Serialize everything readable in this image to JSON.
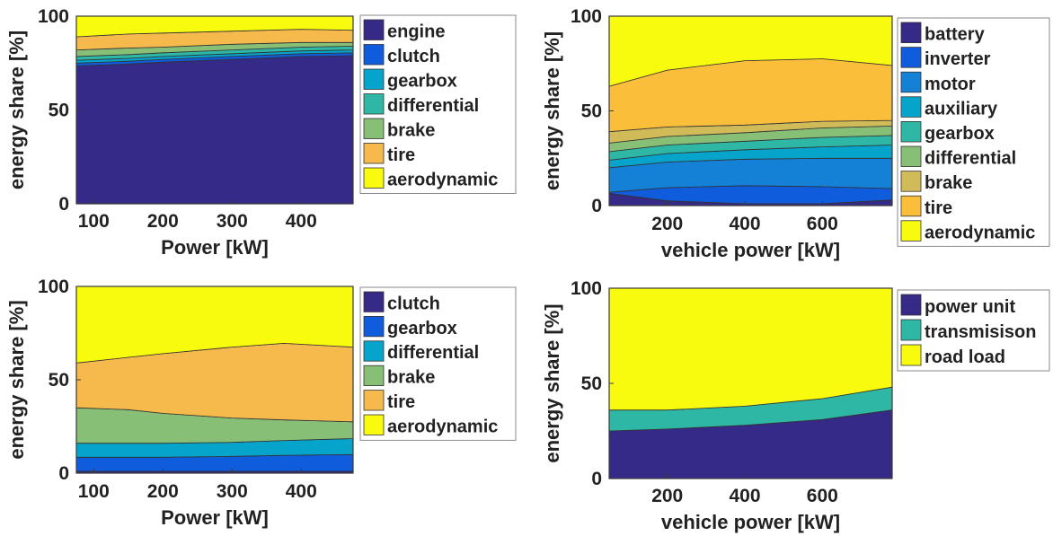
{
  "colors": {
    "dark_blue": "#352a87",
    "blue": "#0f5cdd",
    "mid_blue": "#1481d6",
    "cyan": "#06a4ca",
    "teal": "#2eb7a4",
    "green": "#87bf77",
    "gold": "#d1bb59",
    "orange": "#f5b94c",
    "tire_orange": "#fbbe3a",
    "yellow": "#f9fb0e"
  },
  "chart_data": [
    {
      "type": "area",
      "stacked": true,
      "x": [
        80,
        150,
        200,
        300,
        400,
        475
      ],
      "xlabel": "Power [kW]",
      "ylabel": "energy share [%]",
      "xlim": [
        75,
        475
      ],
      "ylim": [
        0,
        100
      ],
      "xticks": [
        100,
        200,
        300,
        400
      ],
      "yticks": [
        0,
        50,
        100
      ],
      "legend": "right",
      "series": [
        {
          "name": "engine",
          "color": "#352a87",
          "values": [
            73.5,
            74.5,
            75.5,
            77,
            78.5,
            79
          ]
        },
        {
          "name": "clutch",
          "color": "#0f5cdd",
          "values": [
            1.5,
            1.5,
            1.5,
            1.5,
            1.5,
            1.5
          ]
        },
        {
          "name": "gearbox",
          "color": "#06a4ca",
          "values": [
            1.5,
            1.5,
            1.5,
            1.5,
            1.5,
            1.5
          ]
        },
        {
          "name": "differential",
          "color": "#2eb7a4",
          "values": [
            2,
            2,
            2,
            2,
            2,
            2
          ]
        },
        {
          "name": "brake",
          "color": "#87bf77",
          "values": [
            3.5,
            3.5,
            3,
            3,
            2.5,
            2
          ]
        },
        {
          "name": "tire",
          "color": "#f5b94c",
          "values": [
            7,
            7.5,
            7.5,
            7,
            7,
            6.5
          ]
        },
        {
          "name": "aerodynamic",
          "color": "#f9fb0e",
          "values": [
            11,
            9.5,
            9,
            8,
            7,
            7.5
          ]
        }
      ]
    },
    {
      "type": "area",
      "stacked": true,
      "x": [
        50,
        200,
        400,
        600,
        780
      ],
      "xlabel": "vehicle power [kW]",
      "ylabel": "energy share [%]",
      "xlim": [
        50,
        780
      ],
      "ylim": [
        0,
        100
      ],
      "xticks": [
        200,
        400,
        600
      ],
      "yticks": [
        0,
        50,
        100
      ],
      "legend": "right",
      "series": [
        {
          "name": "battery",
          "color": "#352a87",
          "values": [
            6.5,
            2.5,
            1,
            1,
            3
          ]
        },
        {
          "name": "inverter",
          "color": "#0f5cdd",
          "values": [
            0.5,
            7,
            9.5,
            9,
            6
          ]
        },
        {
          "name": "motor",
          "color": "#1481d6",
          "values": [
            13,
            13.5,
            14,
            15,
            16
          ]
        },
        {
          "name": "auxiliary",
          "color": "#06a4ca",
          "values": [
            4,
            4.5,
            5,
            6,
            7
          ]
        },
        {
          "name": "gearbox",
          "color": "#2eb7a4",
          "values": [
            4.5,
            4.5,
            4.5,
            5,
            5
          ]
        },
        {
          "name": "differential",
          "color": "#87bf77",
          "values": [
            4.5,
            4.5,
            4.5,
            5,
            5
          ]
        },
        {
          "name": "brake",
          "color": "#d1bb59",
          "values": [
            6,
            5,
            4,
            3.5,
            3
          ]
        },
        {
          "name": "tire",
          "color": "#fbbe3a",
          "values": [
            24,
            30,
            34,
            33,
            29
          ]
        },
        {
          "name": "aerodynamic",
          "color": "#f9fb0e",
          "values": [
            37,
            28.5,
            23.5,
            22.5,
            26
          ]
        }
      ]
    },
    {
      "type": "area",
      "stacked": true,
      "x": [
        80,
        150,
        200,
        300,
        375,
        475
      ],
      "xlabel": "Power [kW]",
      "ylabel": "energy share [%]",
      "xlim": [
        75,
        475
      ],
      "ylim": [
        0,
        100
      ],
      "xticks": [
        100,
        200,
        300,
        400
      ],
      "yticks": [
        0,
        50,
        100
      ],
      "legend": "right",
      "series": [
        {
          "name": "clutch",
          "color": "#352a87",
          "values": [
            1,
            1,
            1,
            1,
            1,
            1
          ]
        },
        {
          "name": "gearbox",
          "color": "#0f5cdd",
          "values": [
            7.5,
            7.5,
            7.5,
            8,
            8.5,
            9
          ]
        },
        {
          "name": "differential",
          "color": "#06a4ca",
          "values": [
            7.5,
            7.5,
            7.5,
            7.5,
            8,
            8.5
          ]
        },
        {
          "name": "brake",
          "color": "#87bf77",
          "values": [
            19,
            18,
            16,
            13,
            11,
            9
          ]
        },
        {
          "name": "tire",
          "color": "#f5b94c",
          "values": [
            24,
            28,
            32,
            38,
            41,
            40
          ]
        },
        {
          "name": "aerodynamic",
          "color": "#f9fb0e",
          "values": [
            41,
            38,
            36,
            32.5,
            30.5,
            32.5
          ]
        }
      ]
    },
    {
      "type": "area",
      "stacked": true,
      "x": [
        50,
        200,
        400,
        600,
        780
      ],
      "xlabel": "vehicle power [kW]",
      "ylabel": "energy share [%]",
      "xlim": [
        50,
        780
      ],
      "ylim": [
        0,
        100
      ],
      "xticks": [
        200,
        400,
        600
      ],
      "yticks": [
        0,
        50,
        100
      ],
      "legend": "right",
      "series": [
        {
          "name": "power unit",
          "color": "#352a87",
          "values": [
            25,
            26,
            28,
            31,
            36
          ]
        },
        {
          "name": "transmisison",
          "color": "#2eb7a4",
          "values": [
            11,
            10,
            10,
            11,
            12
          ]
        },
        {
          "name": "road load",
          "color": "#f9fb0e",
          "values": [
            64,
            64,
            62,
            58,
            52
          ]
        }
      ]
    }
  ]
}
